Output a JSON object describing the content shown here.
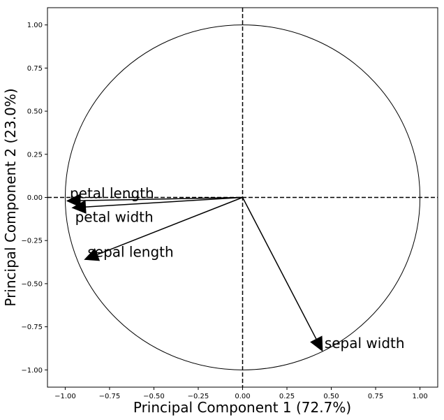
{
  "chart_data": {
    "type": "scatter",
    "subtype": "pca-correlation-circle",
    "title": "",
    "xlabel": "Principal Component 1 (72.7%)",
    "ylabel": "Principal Component 2 (23.0%)",
    "xlim": [
      -1.1,
      1.1
    ],
    "ylim": [
      -1.1,
      1.1
    ],
    "xticks": [
      "−1.00",
      "−0.75",
      "−0.50",
      "−0.25",
      "0.00",
      "0.25",
      "0.50",
      "0.75",
      "1.00"
    ],
    "yticks": [
      "1.00",
      "0.75",
      "0.50",
      "0.25",
      "0.00",
      "−0.25",
      "−0.50",
      "−0.75",
      "−1.00"
    ],
    "unit_circle_radius": 1.0,
    "reference_lines": [
      "x = 0 dashed",
      "y = 0 dashed"
    ],
    "grid": false,
    "vectors": [
      {
        "name": "sepal length",
        "x": -0.89,
        "y": -0.36
      },
      {
        "name": "sepal width",
        "x": 0.45,
        "y": -0.89
      },
      {
        "name": "petal length",
        "x": -0.99,
        "y": -0.02
      },
      {
        "name": "petal width",
        "x": -0.96,
        "y": -0.06
      }
    ],
    "colors": {
      "arrow": "#000000",
      "circle": "#000000",
      "background": "#ffffff"
    }
  }
}
